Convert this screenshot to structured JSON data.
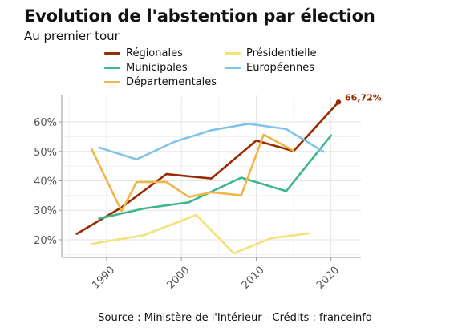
{
  "title": "Evolution de l'abstention par élection",
  "subtitle": "Au premier tour",
  "source": "Source : Ministère de l'Intérieur - Crédits : franceinfo",
  "chart_data": {
    "type": "line",
    "title": "Evolution de l'abstention par élection",
    "subtitle": "Au premier tour",
    "xlim": [
      1984,
      2024
    ],
    "ylim": [
      14,
      69
    ],
    "x_ticks": [
      1990,
      2000,
      2010,
      2020
    ],
    "y_ticks": [
      20,
      30,
      40,
      50,
      60
    ],
    "y_tick_labels": [
      "20%",
      "30%",
      "40%",
      "50%",
      "60%"
    ],
    "grid": true,
    "legend_position": "top",
    "series": [
      {
        "name": "Régionales",
        "color": "#9a2a00",
        "x": [
          1986,
          1992,
          1998,
          2004,
          2010,
          2015,
          2021
        ],
        "y": [
          22,
          31,
          42.3,
          40.8,
          53.7,
          50.1,
          66.72
        ]
      },
      {
        "name": "Municipales",
        "color": "#3eb68f",
        "x": [
          1989,
          1995,
          2001,
          2008,
          2014,
          2020
        ],
        "y": [
          27.2,
          30.6,
          32.7,
          41.1,
          36.5,
          55.4
        ]
      },
      {
        "name": "Départementales",
        "color": "#efb648",
        "x": [
          1988,
          1992,
          1994,
          1998,
          2001,
          2004,
          2008,
          2011,
          2015
        ],
        "y": [
          50.8,
          29.7,
          39.6,
          39.6,
          34.5,
          36.1,
          35.1,
          55.7,
          50.2
        ]
      },
      {
        "name": "Présidentielle",
        "color": "#f2e27a",
        "x": [
          1988,
          1995,
          2002,
          2007,
          2012,
          2017
        ],
        "y": [
          18.6,
          21.6,
          28.4,
          15.4,
          20.5,
          22.2
        ]
      },
      {
        "name": "Européennes",
        "color": "#82c4e8",
        "x": [
          1989,
          1994,
          1999,
          2004,
          2009,
          2014,
          2019
        ],
        "y": [
          51.3,
          47.3,
          53.2,
          57.2,
          59.4,
          57.6,
          49.9
        ]
      }
    ],
    "annotations": [
      {
        "x": 2021,
        "y": 66.72,
        "text": "66,72%",
        "color": "#9a2a00"
      }
    ]
  }
}
